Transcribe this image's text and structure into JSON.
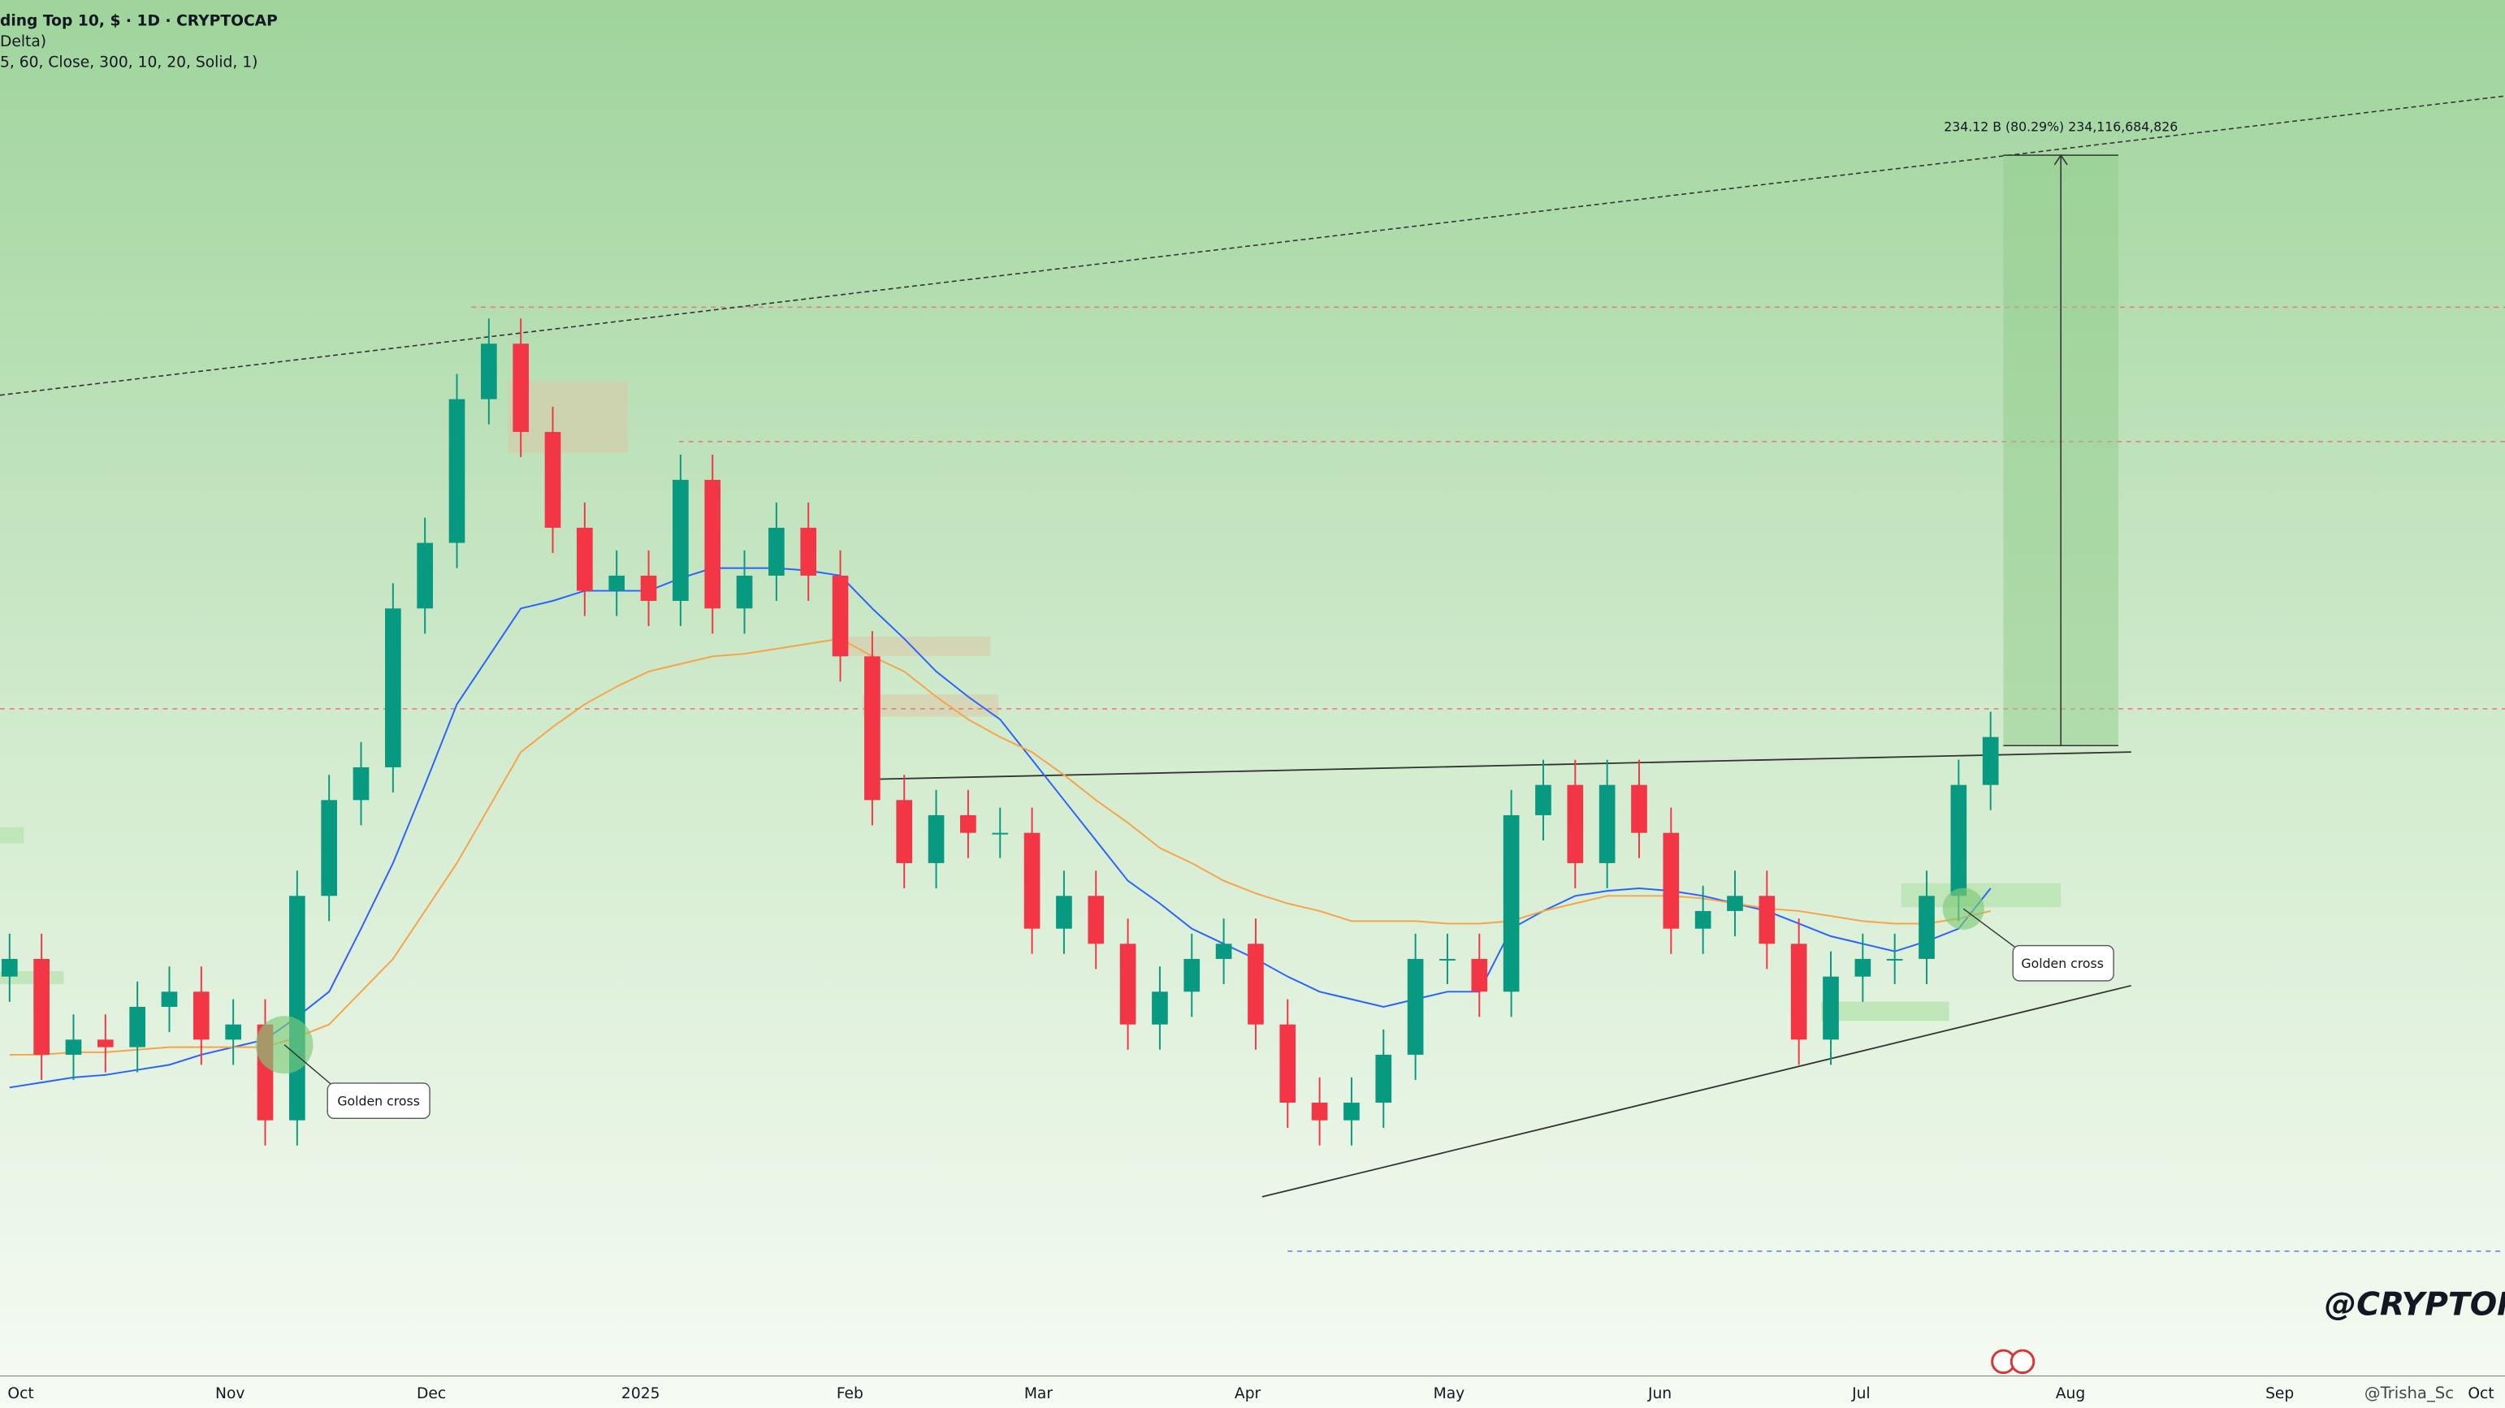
{
  "chart_data": {
    "type": "candlestick",
    "header": [
      "ding Top 10, $ · 1D · CRYPTOCAP",
      "Delta)",
      "5, 60, Close, 300, 10, 20, Solid, 1)"
    ],
    "month_labels": [
      "Oct",
      "Nov",
      "Dec",
      "2025",
      "Feb",
      "Mar",
      "Apr",
      "May",
      "Jun",
      "Jul",
      "Aug",
      "Sep",
      "Oct"
    ],
    "ylim": [
      28.9,
      587.3
    ],
    "up_color": "#089981",
    "down_color": "#f23645",
    "open": [
      200,
      207,
      169,
      175,
      172,
      188,
      194,
      175,
      181,
      143,
      232,
      270,
      283,
      346,
      372,
      429,
      451,
      416,
      378,
      353,
      359,
      349,
      397,
      346,
      359,
      378,
      359,
      327,
      270,
      245,
      264,
      257,
      257,
      219,
      232,
      213,
      181,
      194,
      207,
      213,
      181,
      150,
      143,
      150,
      169,
      207,
      207,
      194,
      264,
      276,
      245,
      276,
      257,
      219,
      226,
      232,
      213,
      175,
      200,
      207,
      207,
      232,
      276
    ],
    "high": [
      217,
      217,
      185,
      185,
      198,
      204,
      204,
      191,
      191,
      242,
      280,
      293,
      356,
      382,
      439,
      461,
      461,
      426,
      388,
      369,
      369,
      407,
      407,
      369,
      388,
      388,
      369,
      337,
      280,
      274,
      274,
      267,
      267,
      242,
      242,
      223,
      204,
      217,
      223,
      223,
      191,
      160,
      160,
      179,
      217,
      217,
      217,
      274,
      286,
      286,
      286,
      286,
      267,
      236,
      242,
      242,
      223,
      210,
      217,
      217,
      242,
      286,
      305
    ],
    "low": [
      190,
      159,
      159,
      162,
      162,
      178,
      165,
      165,
      133,
      133,
      222,
      260,
      273,
      336,
      362,
      419,
      406,
      368,
      343,
      343,
      339,
      339,
      336,
      336,
      349,
      349,
      317,
      260,
      235,
      235,
      247,
      247,
      209,
      209,
      203,
      171,
      171,
      184,
      197,
      171,
      140,
      133,
      133,
      140,
      159,
      197,
      184,
      184,
      254,
      235,
      235,
      247,
      209,
      209,
      216,
      203,
      165,
      165,
      190,
      197,
      197,
      222,
      266
    ],
    "close": [
      207,
      169,
      175,
      172,
      188,
      194,
      175,
      181,
      143,
      232,
      270,
      283,
      346,
      372,
      429,
      451,
      416,
      378,
      353,
      359,
      349,
      397,
      346,
      359,
      378,
      359,
      327,
      270,
      245,
      264,
      257,
      257,
      219,
      232,
      213,
      181,
      194,
      207,
      213,
      181,
      150,
      143,
      150,
      169,
      207,
      207,
      194,
      264,
      276,
      245,
      276,
      257,
      219,
      226,
      232,
      213,
      175,
      200,
      207,
      207,
      232,
      276,
      295
    ],
    "series": [
      {
        "color": "#2962ff",
        "values": [
          156,
          158,
          160,
          161,
          163,
          165,
          169,
          172,
          175,
          184,
          194,
          219,
          245,
          276,
          308,
          327,
          346,
          349,
          353,
          353,
          353,
          358,
          362,
          362,
          362,
          361,
          359,
          346,
          334,
          321,
          311,
          302,
          286,
          270,
          254,
          238,
          229,
          219,
          213,
          207,
          200,
          194,
          191,
          188,
          191,
          194,
          194,
          219,
          226,
          232,
          234,
          235,
          234,
          232,
          229,
          226,
          221,
          216,
          213,
          210,
          214,
          219,
          235
        ]
      },
      {
        "color": "#f7a348",
        "values": [
          169,
          169,
          170,
          170,
          171,
          172,
          172,
          172,
          172,
          176,
          181,
          194,
          207,
          226,
          245,
          267,
          289,
          299,
          308,
          315,
          321,
          324,
          327,
          328,
          330,
          332,
          334,
          327,
          321,
          311,
          302,
          295,
          289,
          280,
          270,
          261,
          251,
          245,
          238,
          233,
          229,
          226,
          222,
          222,
          222,
          221,
          221,
          222,
          226,
          229,
          232,
          232,
          232,
          231,
          229,
          227,
          226,
          224,
          222,
          221,
          221,
          223,
          226
        ]
      }
    ],
    "annotations": [
      "Golden cross",
      "Golden cross"
    ],
    "measure_label": "234.12 B (80.29%) 234,116,684,826",
    "watermark": "@CRYPTOM",
    "credit": "@Trisha_Sc"
  }
}
